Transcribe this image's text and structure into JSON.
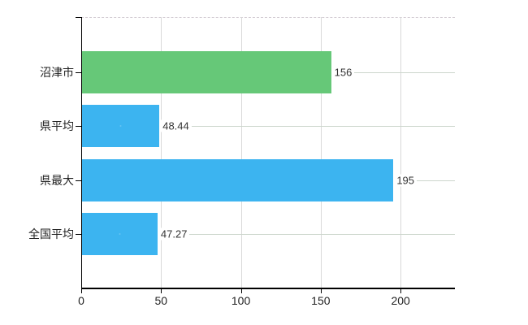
{
  "chart_data": {
    "type": "bar",
    "orientation": "horizontal",
    "categories": [
      "沼津市",
      "県平均",
      "県最大",
      "全国平均"
    ],
    "values": [
      156,
      48.44,
      195,
      47.27
    ],
    "value_labels": [
      "156",
      "48.44",
      "195",
      "47.27"
    ],
    "bar_colors": [
      "#66c878",
      "#3cb4f0",
      "#3cb4f0",
      "#3cb4f0"
    ],
    "x_axis": {
      "tick_labels": [
        "0",
        "50",
        "100",
        "150",
        "200"
      ],
      "tick_values": [
        0,
        50,
        100,
        150,
        200
      ],
      "min": 0,
      "max": 234
    },
    "legend": "none",
    "grid": {
      "vertical_lines": true,
      "horizontal_category_lines": true,
      "top_border": "dashed"
    }
  },
  "colors": {
    "bar_highlight": "#66c878",
    "bar_default": "#3cb4f0",
    "vertical_grid": "#d9d9d9",
    "horizontal_grid": "#ccd6cc",
    "top_border": "#d2cbd2",
    "axis": "#000000",
    "label_text": "#222222",
    "value_text": "#333333",
    "background": "#ffffff"
  }
}
